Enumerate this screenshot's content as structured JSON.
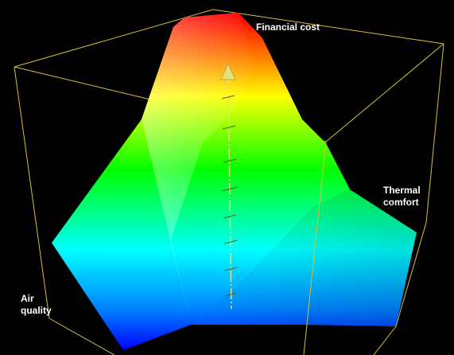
{
  "axes": {
    "financial_cost": "Financial cost",
    "thermal_comfort": {
      "line1": "Thermal",
      "line2": "comfort"
    },
    "air_quality": {
      "line1": "Air",
      "line2": "quality"
    }
  },
  "colors": {
    "background": "#000000",
    "bounding_box": "#d4c23a",
    "gradient_top": "#ff0000",
    "gradient_orange": "#ff9900",
    "gradient_yellow": "#ffff00",
    "gradient_green": "#00ff00",
    "gradient_cyan": "#00ffff",
    "gradient_blue": "#0000ff",
    "arrow": "#e6df7a"
  },
  "icons": {
    "arrow": "arrow-up-icon"
  }
}
